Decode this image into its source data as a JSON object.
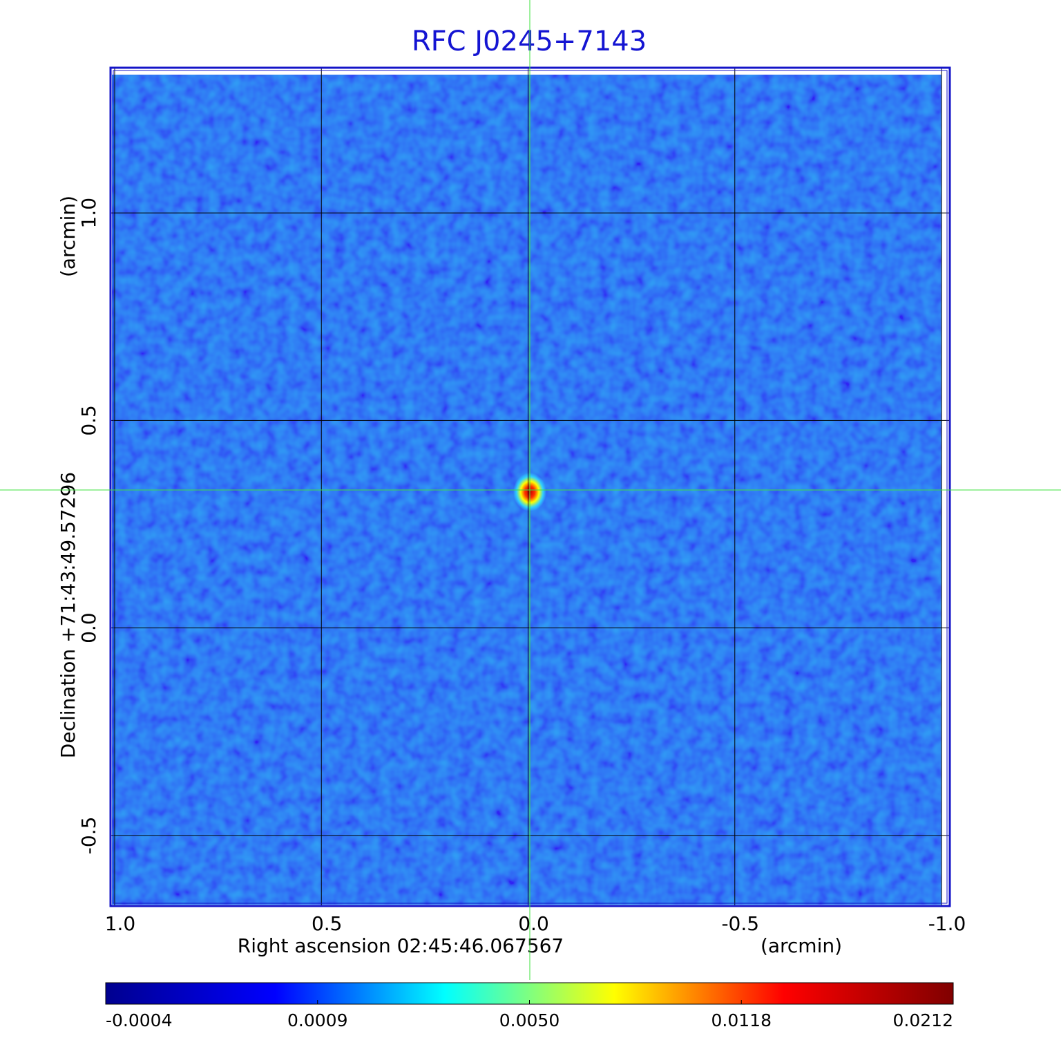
{
  "chart_data": {
    "type": "image",
    "title": "RFC J0245+7143",
    "x_label": "Right ascension  02:45:46.067567",
    "x_unit": "(arcmin)",
    "y_label": "Declination  +71:43:49.57296",
    "y_unit": "(arcmin)",
    "xlim": [
      1.01,
      -1.02
    ],
    "ylim": [
      -0.67,
      1.35
    ],
    "xticks": [
      {
        "value": 1,
        "label": "1.0"
      },
      {
        "value": 0.5,
        "label": "0.5"
      },
      {
        "value": 0,
        "label": "0.0"
      },
      {
        "value": -0.5,
        "label": "-0.5"
      },
      {
        "value": -1,
        "label": "-1.0"
      }
    ],
    "yticks": [
      {
        "value": -0.5,
        "label": "-0.5"
      },
      {
        "value": 0,
        "label": "0.0"
      },
      {
        "value": 0.5,
        "label": "0.5"
      },
      {
        "value": 1,
        "label": "1.0"
      }
    ],
    "grid": true,
    "colorbar": {
      "colors": [
        "#00008f",
        "#0000ff",
        "#00ffff",
        "#ffff00",
        "#ff0000",
        "#800000"
      ],
      "ticks": [
        {
          "value": -0.0004,
          "label": "-0.0004"
        },
        {
          "value": 0.0009,
          "label": "0.0009"
        },
        {
          "value": 0.005,
          "label": "0.0050"
        },
        {
          "value": 0.0118,
          "label": "0.0118"
        },
        {
          "value": 0.0212,
          "label": "0.0212"
        }
      ]
    }
  }
}
